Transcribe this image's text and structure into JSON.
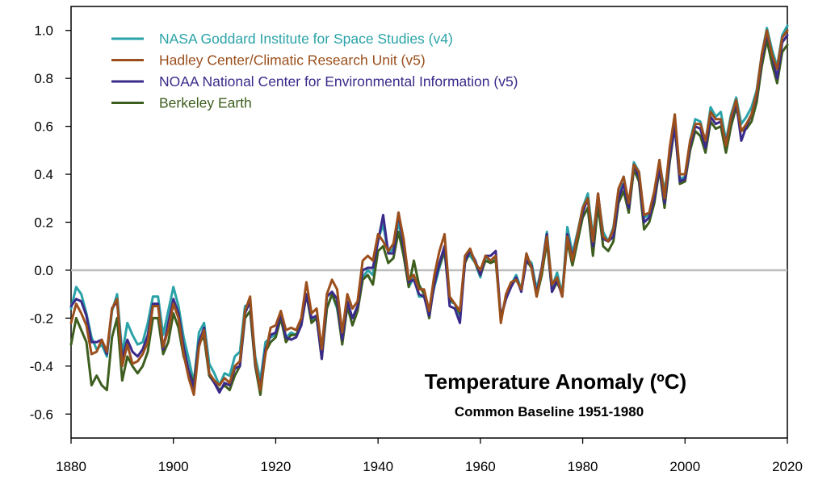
{
  "chart_data": {
    "type": "line",
    "title": "Temperature Anomaly (ºC)",
    "subtitle": "Common Baseline 1951-1980",
    "xlabel": "",
    "ylabel": "",
    "xlim": [
      1880,
      2020
    ],
    "ylim": [
      -0.7,
      1.1
    ],
    "x_ticks": [
      1880,
      1900,
      1920,
      1940,
      1960,
      1980,
      2000,
      2020
    ],
    "x_tick_labels": [
      "1880",
      "1900",
      "1920",
      "1940",
      "1960",
      "1980",
      "2000",
      "2020"
    ],
    "y_ticks": [
      -0.6,
      -0.4,
      -0.2,
      0.0,
      0.2,
      0.4,
      0.6,
      0.8,
      1.0
    ],
    "y_tick_labels": [
      "-0.6",
      "-0.4",
      "-0.2",
      "0.0",
      "0.2",
      "0.4",
      "0.6",
      "0.8",
      "1.0"
    ],
    "zero_line": true,
    "grid": false,
    "legend_position": "top-left",
    "x": [
      1880,
      1881,
      1882,
      1883,
      1884,
      1885,
      1886,
      1887,
      1888,
      1889,
      1890,
      1891,
      1892,
      1893,
      1894,
      1895,
      1896,
      1897,
      1898,
      1899,
      1900,
      1901,
      1902,
      1903,
      1904,
      1905,
      1906,
      1907,
      1908,
      1909,
      1910,
      1911,
      1912,
      1913,
      1914,
      1915,
      1916,
      1917,
      1918,
      1919,
      1920,
      1921,
      1922,
      1923,
      1924,
      1925,
      1926,
      1927,
      1928,
      1929,
      1930,
      1931,
      1932,
      1933,
      1934,
      1935,
      1936,
      1937,
      1938,
      1939,
      1940,
      1941,
      1942,
      1943,
      1944,
      1945,
      1946,
      1947,
      1948,
      1949,
      1950,
      1951,
      1952,
      1953,
      1954,
      1955,
      1956,
      1957,
      1958,
      1959,
      1960,
      1961,
      1962,
      1963,
      1964,
      1965,
      1966,
      1967,
      1968,
      1969,
      1970,
      1971,
      1972,
      1973,
      1974,
      1975,
      1976,
      1977,
      1978,
      1979,
      1980,
      1981,
      1982,
      1983,
      1984,
      1985,
      1986,
      1987,
      1988,
      1989,
      1990,
      1991,
      1992,
      1993,
      1994,
      1995,
      1996,
      1997,
      1998,
      1999,
      2000,
      2001,
      2002,
      2003,
      2004,
      2005,
      2006,
      2007,
      2008,
      2009,
      2010,
      2011,
      2012,
      2013,
      2014,
      2015,
      2016,
      2017,
      2018,
      2019,
      2020
    ],
    "series": [
      {
        "name": "NASA Goddard Institute for Space Studies (v4)",
        "color": "#2aa3a8",
        "values": [
          -0.16,
          -0.07,
          -0.1,
          -0.18,
          -0.28,
          -0.33,
          -0.31,
          -0.36,
          -0.17,
          -0.1,
          -0.35,
          -0.22,
          -0.27,
          -0.31,
          -0.3,
          -0.22,
          -0.11,
          -0.11,
          -0.27,
          -0.17,
          -0.07,
          -0.15,
          -0.28,
          -0.37,
          -0.47,
          -0.26,
          -0.22,
          -0.39,
          -0.43,
          -0.48,
          -0.43,
          -0.44,
          -0.36,
          -0.34,
          -0.15,
          -0.14,
          -0.36,
          -0.46,
          -0.3,
          -0.28,
          -0.27,
          -0.19,
          -0.28,
          -0.26,
          -0.27,
          -0.22,
          -0.1,
          -0.21,
          -0.2,
          -0.36,
          -0.16,
          -0.1,
          -0.16,
          -0.29,
          -0.13,
          -0.2,
          -0.15,
          -0.03,
          -0.0,
          -0.02,
          0.13,
          0.19,
          0.07,
          0.09,
          0.2,
          0.09,
          -0.07,
          -0.03,
          -0.11,
          -0.11,
          -0.17,
          -0.07,
          0.01,
          0.08,
          -0.13,
          -0.14,
          -0.19,
          0.05,
          0.06,
          0.03,
          -0.03,
          0.06,
          0.03,
          0.05,
          -0.2,
          -0.11,
          -0.06,
          -0.02,
          -0.08,
          0.05,
          0.03,
          -0.08,
          0.01,
          0.16,
          -0.07,
          -0.01,
          -0.1,
          0.18,
          0.07,
          0.16,
          0.26,
          0.32,
          0.14,
          0.31,
          0.16,
          0.12,
          0.18,
          0.33,
          0.39,
          0.27,
          0.45,
          0.41,
          0.22,
          0.23,
          0.31,
          0.45,
          0.33,
          0.46,
          0.61,
          0.38,
          0.39,
          0.54,
          0.63,
          0.62,
          0.53,
          0.68,
          0.64,
          0.66,
          0.54,
          0.65,
          0.72,
          0.61,
          0.64,
          0.68,
          0.75,
          0.9,
          1.01,
          0.92,
          0.85,
          0.98,
          1.02
        ]
      },
      {
        "name": "Hadley Center/Climatic Research Unit (v5)",
        "color": "#9b4f1c",
        "values": [
          -0.22,
          -0.14,
          -0.18,
          -0.23,
          -0.35,
          -0.34,
          -0.29,
          -0.34,
          -0.16,
          -0.12,
          -0.4,
          -0.31,
          -0.39,
          -0.38,
          -0.35,
          -0.3,
          -0.15,
          -0.15,
          -0.32,
          -0.25,
          -0.14,
          -0.2,
          -0.35,
          -0.45,
          -0.52,
          -0.32,
          -0.25,
          -0.43,
          -0.46,
          -0.48,
          -0.45,
          -0.47,
          -0.4,
          -0.38,
          -0.17,
          -0.11,
          -0.38,
          -0.5,
          -0.35,
          -0.24,
          -0.23,
          -0.17,
          -0.25,
          -0.24,
          -0.25,
          -0.2,
          -0.05,
          -0.18,
          -0.16,
          -0.33,
          -0.1,
          -0.04,
          -0.08,
          -0.26,
          -0.1,
          -0.16,
          -0.13,
          0.04,
          0.06,
          0.04,
          0.15,
          0.12,
          0.08,
          0.11,
          0.24,
          0.13,
          -0.04,
          -0.02,
          -0.08,
          -0.08,
          -0.17,
          -0.02,
          0.08,
          0.15,
          -0.11,
          -0.14,
          -0.17,
          0.06,
          0.09,
          0.03,
          0.0,
          0.06,
          0.04,
          0.06,
          -0.22,
          -0.1,
          -0.05,
          -0.04,
          -0.08,
          0.07,
          0.01,
          -0.11,
          0.0,
          0.14,
          -0.06,
          -0.03,
          -0.11,
          0.14,
          0.04,
          0.15,
          0.26,
          0.3,
          0.12,
          0.32,
          0.14,
          0.12,
          0.17,
          0.34,
          0.39,
          0.28,
          0.44,
          0.41,
          0.23,
          0.24,
          0.33,
          0.46,
          0.3,
          0.51,
          0.65,
          0.4,
          0.4,
          0.54,
          0.61,
          0.61,
          0.54,
          0.66,
          0.63,
          0.63,
          0.52,
          0.64,
          0.71,
          0.58,
          0.61,
          0.65,
          0.74,
          0.9,
          1.0,
          0.9,
          0.84,
          0.97,
          1.0
        ]
      },
      {
        "name": "NOAA National Center for Environmental Information (v5)",
        "color": "#3a2a8a",
        "values": [
          -0.15,
          -0.12,
          -0.13,
          -0.19,
          -0.3,
          -0.3,
          -0.29,
          -0.35,
          -0.16,
          -0.13,
          -0.37,
          -0.29,
          -0.34,
          -0.36,
          -0.33,
          -0.27,
          -0.14,
          -0.14,
          -0.33,
          -0.22,
          -0.12,
          -0.18,
          -0.32,
          -0.42,
          -0.49,
          -0.3,
          -0.24,
          -0.43,
          -0.47,
          -0.51,
          -0.47,
          -0.48,
          -0.41,
          -0.4,
          -0.18,
          -0.13,
          -0.39,
          -0.49,
          -0.33,
          -0.27,
          -0.26,
          -0.18,
          -0.28,
          -0.29,
          -0.28,
          -0.23,
          -0.1,
          -0.2,
          -0.19,
          -0.37,
          -0.11,
          -0.09,
          -0.12,
          -0.29,
          -0.13,
          -0.2,
          -0.15,
          0.0,
          0.01,
          0.01,
          0.12,
          0.23,
          0.07,
          0.07,
          0.24,
          0.1,
          -0.05,
          -0.04,
          -0.1,
          -0.11,
          -0.19,
          -0.06,
          0.03,
          0.1,
          -0.15,
          -0.16,
          -0.22,
          0.04,
          0.08,
          0.04,
          -0.02,
          0.06,
          0.06,
          0.08,
          -0.2,
          -0.12,
          -0.07,
          -0.03,
          -0.09,
          0.04,
          0.02,
          -0.1,
          0.01,
          0.15,
          -0.09,
          -0.04,
          -0.11,
          0.15,
          0.05,
          0.15,
          0.24,
          0.3,
          0.1,
          0.32,
          0.13,
          0.12,
          0.14,
          0.3,
          0.36,
          0.26,
          0.44,
          0.39,
          0.2,
          0.22,
          0.3,
          0.43,
          0.28,
          0.47,
          0.6,
          0.37,
          0.38,
          0.52,
          0.6,
          0.59,
          0.51,
          0.64,
          0.61,
          0.62,
          0.53,
          0.63,
          0.7,
          0.54,
          0.6,
          0.65,
          0.73,
          0.88,
          0.99,
          0.9,
          0.8,
          0.95,
          0.98
        ]
      },
      {
        "name": "Berkeley Earth",
        "color": "#3d5e1e",
        "values": [
          -0.31,
          -0.2,
          -0.25,
          -0.3,
          -0.48,
          -0.44,
          -0.48,
          -0.5,
          -0.28,
          -0.2,
          -0.46,
          -0.36,
          -0.4,
          -0.43,
          -0.4,
          -0.34,
          -0.2,
          -0.2,
          -0.35,
          -0.3,
          -0.18,
          -0.24,
          -0.36,
          -0.42,
          -0.47,
          -0.3,
          -0.28,
          -0.44,
          -0.47,
          -0.5,
          -0.48,
          -0.5,
          -0.44,
          -0.4,
          -0.2,
          -0.17,
          -0.4,
          -0.52,
          -0.34,
          -0.3,
          -0.28,
          -0.2,
          -0.3,
          -0.27,
          -0.27,
          -0.23,
          -0.1,
          -0.22,
          -0.2,
          -0.37,
          -0.16,
          -0.1,
          -0.15,
          -0.31,
          -0.15,
          -0.23,
          -0.17,
          -0.04,
          -0.02,
          -0.06,
          0.08,
          0.1,
          0.03,
          0.05,
          0.16,
          0.06,
          -0.07,
          0.04,
          -0.06,
          -0.1,
          -0.2,
          -0.05,
          0.02,
          0.08,
          -0.12,
          -0.14,
          -0.18,
          0.03,
          0.08,
          0.03,
          -0.02,
          0.04,
          0.03,
          0.04,
          -0.2,
          -0.12,
          -0.06,
          -0.04,
          -0.08,
          0.04,
          0.01,
          -0.11,
          -0.02,
          0.12,
          -0.09,
          -0.05,
          -0.1,
          0.12,
          0.02,
          0.12,
          0.22,
          0.26,
          0.06,
          0.27,
          0.1,
          0.08,
          0.12,
          0.28,
          0.33,
          0.24,
          0.42,
          0.37,
          0.17,
          0.2,
          0.28,
          0.42,
          0.26,
          0.45,
          0.6,
          0.36,
          0.37,
          0.5,
          0.58,
          0.56,
          0.49,
          0.62,
          0.59,
          0.6,
          0.49,
          0.6,
          0.68,
          0.58,
          0.59,
          0.62,
          0.7,
          0.85,
          0.96,
          0.86,
          0.78,
          0.91,
          0.94
        ]
      }
    ]
  }
}
